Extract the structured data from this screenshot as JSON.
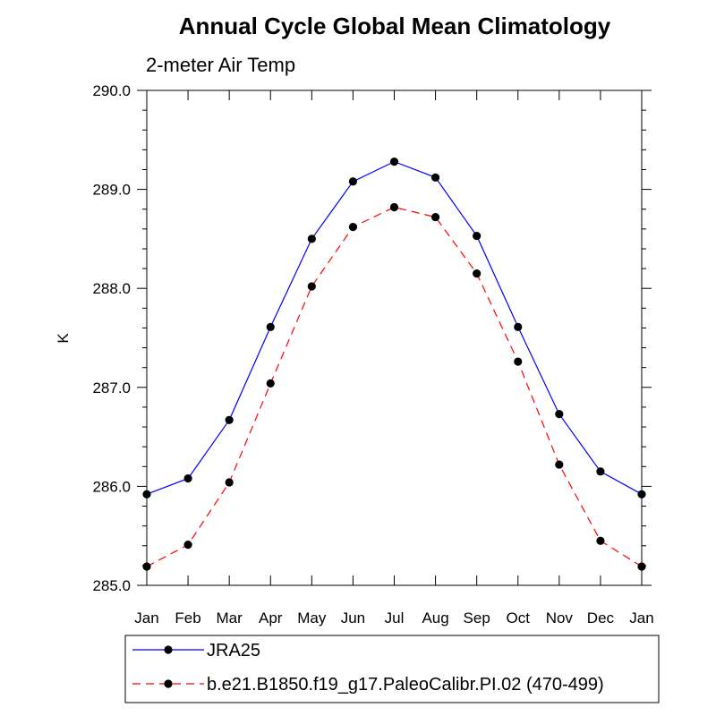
{
  "chart_data": {
    "type": "line",
    "title": "Annual Cycle Global Mean Climatology",
    "subtitle": "2-meter Air Temp",
    "xlabel": "",
    "ylabel": "K",
    "categories": [
      "Jan",
      "Feb",
      "Mar",
      "Apr",
      "May",
      "Jun",
      "Jul",
      "Aug",
      "Sep",
      "Oct",
      "Nov",
      "Dec",
      "Jan"
    ],
    "ylim": [
      285.0,
      290.0
    ],
    "yticks": [
      "285.0",
      "286.0",
      "287.0",
      "288.0",
      "289.0",
      "290.0"
    ],
    "grid": false,
    "legend_position": "bottom",
    "series": [
      {
        "name": "JRA25",
        "color": "#0000ff",
        "dash": "solid",
        "marker": "filled-circle",
        "values": [
          285.92,
          286.08,
          286.67,
          287.61,
          288.5,
          289.08,
          289.28,
          289.12,
          288.53,
          287.61,
          286.73,
          286.15,
          285.92
        ]
      },
      {
        "name": "b.e21.B1850.f19_g17.PaleoCalibr.PI.02 (470-499)",
        "color": "#ff0000",
        "dash": "dashed",
        "marker": "filled-circle",
        "values": [
          285.19,
          285.41,
          286.04,
          287.04,
          288.02,
          288.62,
          288.82,
          288.72,
          288.15,
          287.26,
          286.22,
          285.45,
          285.19
        ]
      }
    ]
  }
}
